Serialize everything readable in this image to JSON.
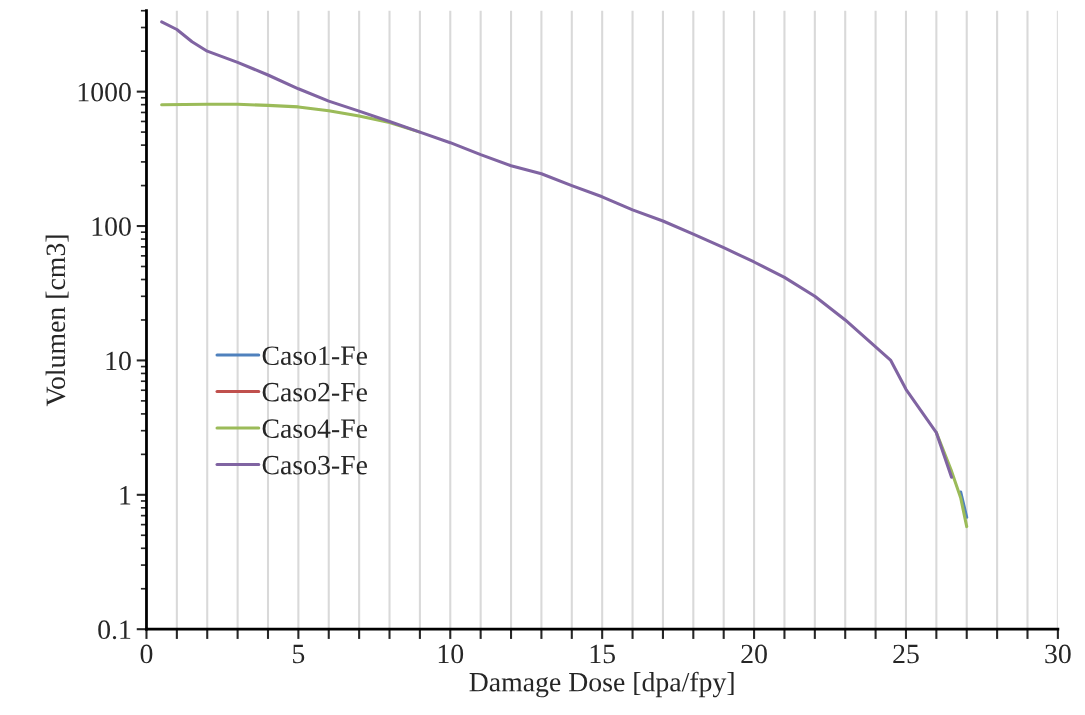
{
  "chart_data": {
    "type": "line",
    "xlabel": "Damage Dose [dpa/fpy]",
    "ylabel": "Volumen [cm3]",
    "log": "y",
    "grid": "x",
    "legend": "left",
    "line_style": "solid",
    "marker": "none",
    "xlim": [
      0,
      30
    ],
    "ylim": [
      0.1,
      4000
    ],
    "xticks": [
      0,
      {
        "value": 1,
        "label": null
      },
      {
        "value": 2,
        "label": null
      },
      {
        "value": 3,
        "label": null
      },
      {
        "value": 4,
        "label": null
      },
      5,
      {
        "value": 6,
        "label": null
      },
      {
        "value": 7,
        "label": null
      },
      {
        "value": 8,
        "label": null
      },
      {
        "value": 9,
        "label": null
      },
      10,
      {
        "value": 11,
        "label": null
      },
      {
        "value": 12,
        "label": null
      },
      {
        "value": 13,
        "label": null
      },
      {
        "value": 14,
        "label": null
      },
      15,
      {
        "value": 16,
        "label": null
      },
      {
        "value": 17,
        "label": null
      },
      {
        "value": 18,
        "label": null
      },
      {
        "value": 19,
        "label": null
      },
      20,
      {
        "value": 21,
        "label": null
      },
      {
        "value": 22,
        "label": null
      },
      {
        "value": 23,
        "label": null
      },
      {
        "value": 24,
        "label": null
      },
      25,
      {
        "value": 26,
        "label": null
      },
      {
        "value": 27,
        "label": null
      },
      {
        "value": 28,
        "label": null
      },
      {
        "value": 29,
        "label": null
      },
      30
    ],
    "yticks": [
      0.1,
      1,
      10,
      100,
      1000
    ],
    "series": [
      {
        "name": "Caso1-Fe",
        "color": "#4f81bd",
        "x": [
          26.8,
          27
        ],
        "values": [
          1.05,
          0.68
        ]
      },
      {
        "name": "Caso2-Fe",
        "color": "#c0504d"
      },
      {
        "name": "Caso4-Fe",
        "color": "#9bbb59",
        "x": [
          0.5,
          2,
          3,
          4,
          5,
          6,
          7,
          8,
          9,
          10,
          11,
          12,
          13,
          14,
          15,
          16,
          17,
          18,
          19,
          20,
          21,
          22,
          23,
          24,
          24.5,
          25,
          26,
          26.5,
          26.8,
          27
        ],
        "values": [
          800,
          805,
          805,
          790,
          770,
          720,
          660,
          590,
          500,
          null,
          null,
          null,
          null,
          null,
          null,
          null,
          null,
          null,
          null,
          null,
          null,
          null,
          null,
          null,
          null,
          null,
          2.9,
          1.5,
          0.95,
          0.58
        ]
      },
      {
        "name": "Caso3-Fe",
        "color": "#8064a2",
        "x": [
          0.5,
          1,
          1.5,
          2,
          3,
          4,
          5,
          6,
          7,
          8,
          9,
          10,
          11,
          12,
          13,
          14,
          15,
          16,
          17,
          18,
          19,
          20,
          21,
          22,
          23,
          24,
          24.5,
          25,
          26,
          26.5
        ],
        "values": [
          3300,
          2900,
          2350,
          2000,
          1650,
          1330,
          1050,
          850,
          716,
          600,
          500,
          417,
          340,
          281,
          245,
          200,
          165,
          132,
          109,
          87,
          69,
          54,
          41.5,
          30,
          20,
          12.6,
          10,
          6.1,
          2.9,
          1.35
        ]
      }
    ]
  }
}
